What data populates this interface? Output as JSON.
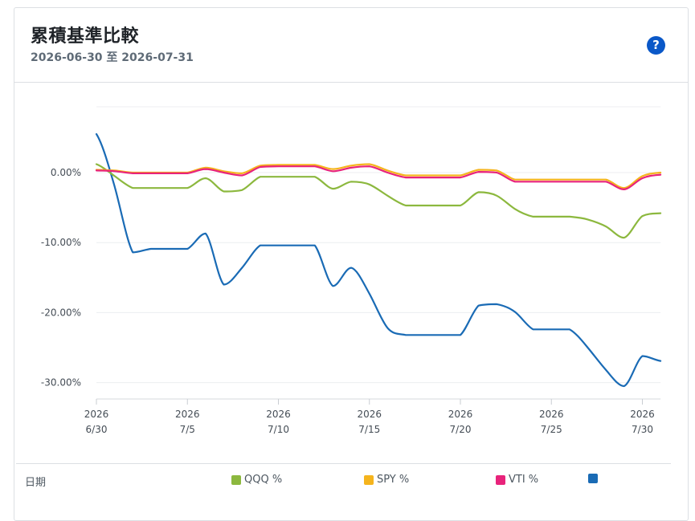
{
  "header": {
    "title": "累積基準比較",
    "subtitle": "2026-06-30 至 2026-07-31",
    "help_label": "?"
  },
  "legend": {
    "date_label": "日期"
  },
  "chart_data": {
    "type": "line",
    "x": [
      "6/30",
      "7/1",
      "7/2",
      "7/3",
      "7/4",
      "7/5",
      "7/6",
      "7/7",
      "7/8",
      "7/9",
      "7/10",
      "7/11",
      "7/12",
      "7/13",
      "7/14",
      "7/15",
      "7/16",
      "7/17",
      "7/18",
      "7/19",
      "7/20",
      "7/21",
      "7/22",
      "7/23",
      "7/24",
      "7/25",
      "7/26",
      "7/27",
      "7/28",
      "7/29",
      "7/30",
      "7/31"
    ],
    "x_ticks": [
      {
        "x": 0,
        "year": "2026",
        "label": "6/30"
      },
      {
        "x": 5,
        "year": "2026",
        "label": "7/5"
      },
      {
        "x": 10,
        "year": "2026",
        "label": "7/10"
      },
      {
        "x": 15,
        "year": "2026",
        "label": "7/15"
      },
      {
        "x": 20,
        "year": "2026",
        "label": "7/20"
      },
      {
        "x": 25,
        "year": "2026",
        "label": "7/25"
      },
      {
        "x": 30,
        "year": "2026",
        "label": "7/30"
      }
    ],
    "y_ticks": [
      {
        "value": 0,
        "label": "0.00%"
      },
      {
        "value": -10,
        "label": "-10.00%"
      },
      {
        "value": -20,
        "label": "-20.00%"
      },
      {
        "value": -30,
        "label": "-30.00%"
      }
    ],
    "ylim": [
      -31.5,
      9.5
    ],
    "grid": true,
    "legend_position": "bottom",
    "series": [
      {
        "name": "QQQ %",
        "color": "#8cb83e",
        "values": [
          1.2,
          -0.5,
          -2.2,
          -2.2,
          -2.2,
          -2.2,
          -0.8,
          -2.7,
          -2.5,
          -0.6,
          -0.6,
          -0.6,
          -0.6,
          -2.3,
          -1.3,
          -1.7,
          -3.3,
          -4.7,
          -4.7,
          -4.7,
          -4.7,
          -2.8,
          -3.3,
          -5.2,
          -6.3,
          -6.3,
          -6.3,
          -6.7,
          -7.7,
          -9.3,
          -6.2,
          -5.8
        ]
      },
      {
        "name": "SPY %",
        "color": "#f5b41d",
        "values": [
          0.4,
          0.3,
          0.0,
          0.0,
          0.0,
          0.0,
          0.7,
          0.2,
          -0.1,
          1.0,
          1.1,
          1.1,
          1.1,
          0.5,
          1.0,
          1.2,
          0.3,
          -0.4,
          -0.4,
          -0.4,
          -0.4,
          0.4,
          0.3,
          -1.0,
          -1.0,
          -1.0,
          -1.0,
          -1.0,
          -1.0,
          -2.2,
          -0.5,
          0.0
        ]
      },
      {
        "name": "VTI %",
        "color": "#e8237b",
        "values": [
          0.3,
          0.2,
          -0.1,
          -0.1,
          -0.1,
          -0.1,
          0.5,
          0.0,
          -0.4,
          0.8,
          0.9,
          0.9,
          0.9,
          0.2,
          0.7,
          0.9,
          0.0,
          -0.7,
          -0.7,
          -0.7,
          -0.7,
          0.1,
          0.0,
          -1.3,
          -1.3,
          -1.3,
          -1.3,
          -1.3,
          -1.3,
          -2.4,
          -0.8,
          -0.3
        ]
      },
      {
        "name": "",
        "color": "#1a6bb5",
        "values": [
          5.5,
          -2.0,
          -11.4,
          -10.9,
          -10.9,
          -10.9,
          -8.7,
          -16.0,
          -13.6,
          -10.4,
          -10.4,
          -10.4,
          -10.4,
          -16.2,
          -13.6,
          -17.3,
          -22.2,
          -23.2,
          -23.2,
          -23.2,
          -23.2,
          -19.0,
          -18.8,
          -19.9,
          -22.4,
          -22.4,
          -22.4,
          -25.0,
          -28.2,
          -30.5,
          -26.2,
          -26.9
        ]
      }
    ]
  }
}
